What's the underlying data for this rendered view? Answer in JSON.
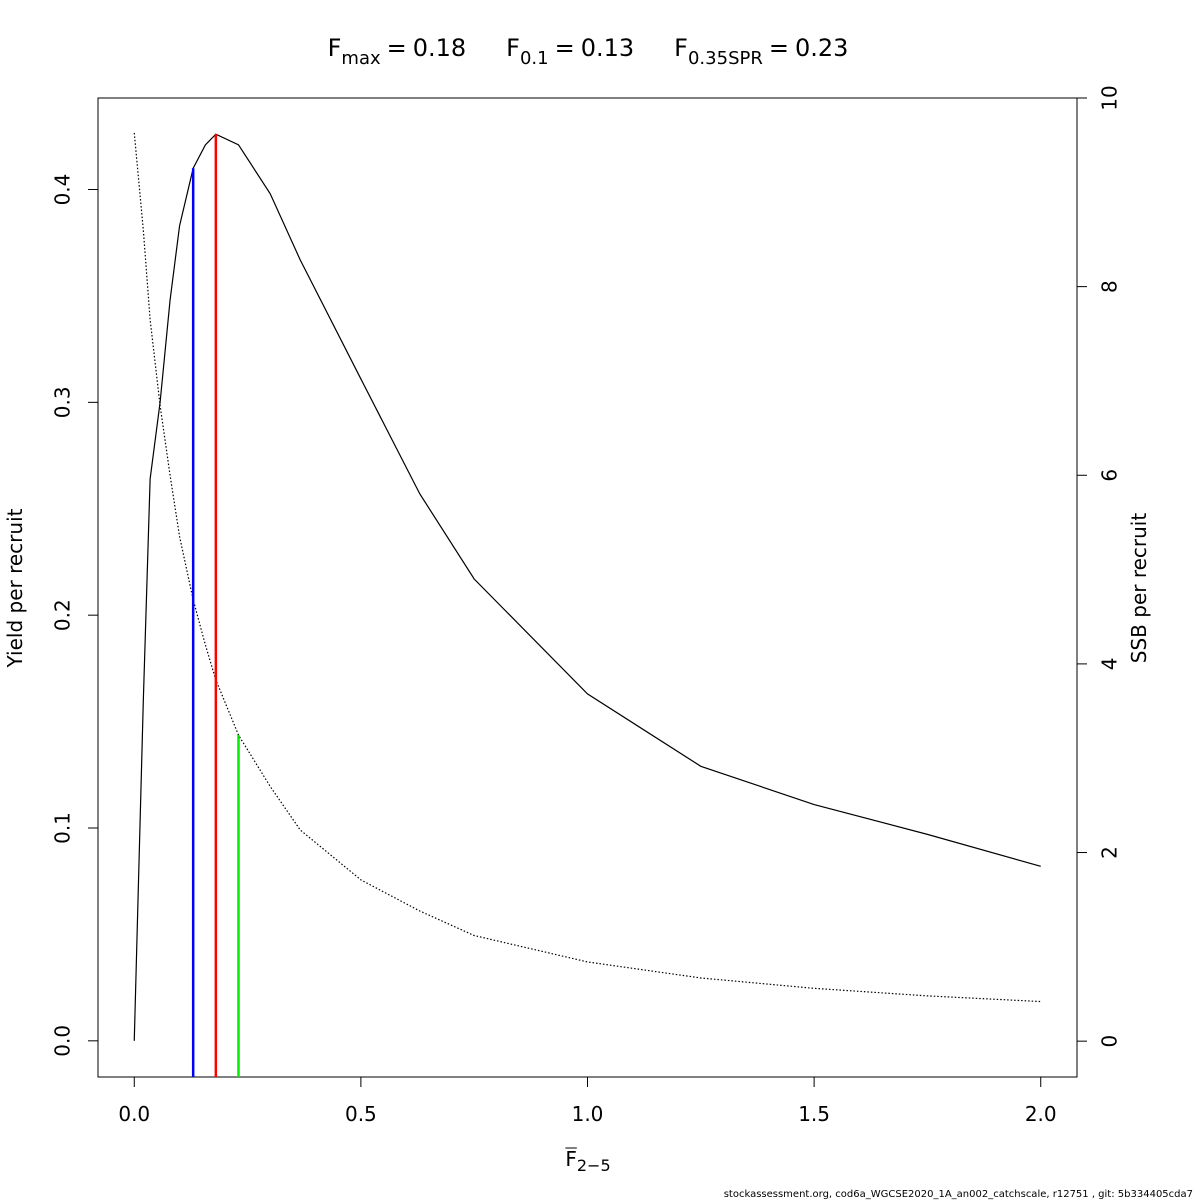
{
  "chart_data": {
    "type": "line",
    "reference_lines": [
      {
        "name": "F",
        "subscript": "max",
        "relation": "=",
        "value": 0.18,
        "y": 0.426,
        "axis": "y",
        "color": "#ff0000"
      },
      {
        "name": "F",
        "subscript": "0.1",
        "relation": "=",
        "value": 0.13,
        "y": 0.41,
        "axis": "y",
        "color": "#0000ff"
      },
      {
        "name": "F",
        "subscript": "0.35SPR",
        "relation": "=",
        "value": 0.23,
        "y": 3.245,
        "axis": "y2",
        "color": "#00ee00"
      }
    ],
    "x_label": {
      "text": "F",
      "subscript": "2−5"
    },
    "y_label": "Yield per recruit",
    "y2_label": "SSB per recruit",
    "footer": "stockassessment.org, cod6a_WGCSE2020_1A_an002_catchscale, r12751 , git: 5b334405cda7",
    "x": [
      0,
      0.02,
      0.035,
      0.057,
      0.079,
      0.1,
      0.13,
      0.157,
      0.18,
      0.23,
      0.3,
      0.366,
      0.5,
      0.63,
      0.75,
      1.0,
      1.25,
      1.5,
      1.75,
      2.0
    ],
    "series": [
      {
        "style": "solid",
        "color": "#000000",
        "axis": "y",
        "values": [
          0,
          0.16,
          0.264,
          0.3,
          0.348,
          0.383,
          0.41,
          0.421,
          0.426,
          0.421,
          0.398,
          0.367,
          0.311,
          0.257,
          0.217,
          0.163,
          0.129,
          0.111,
          0.097,
          0.082
        ]
      },
      {
        "style": "dotted",
        "color": "#000000",
        "axis": "y2",
        "values": [
          9.63,
          8.6,
          7.65,
          6.74,
          6.0,
          5.35,
          4.68,
          4.2,
          3.83,
          3.245,
          2.7,
          2.24,
          1.71,
          1.38,
          1.12,
          0.84,
          0.67,
          0.56,
          0.48,
          0.42
        ]
      }
    ],
    "xlim": [
      -0.08,
      2.08
    ],
    "xticks": [
      {
        "value": 0,
        "label": "0.0"
      },
      0.5,
      {
        "value": 1,
        "label": "1.0"
      },
      1.5,
      {
        "value": 2,
        "label": "2.0"
      }
    ],
    "ylim": [
      -0.017,
      0.443
    ],
    "yticks": [
      {
        "value": 0,
        "label": "0.0"
      },
      0.1,
      0.2,
      0.3,
      0.4
    ],
    "y2lim": [
      -0.38,
      10
    ],
    "y2ticks": [
      0,
      2,
      4,
      6,
      8,
      10
    ]
  }
}
